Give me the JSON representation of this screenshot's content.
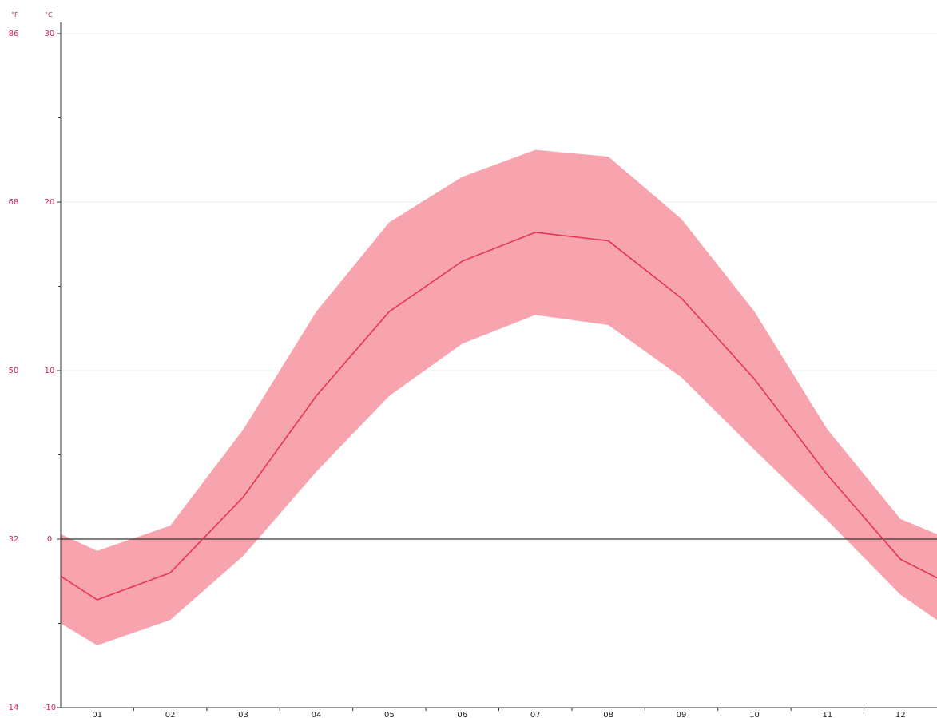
{
  "chart_data": {
    "type": "area",
    "unit_f_label": "°F",
    "unit_c_label": "°C",
    "x": [
      "01",
      "02",
      "03",
      "04",
      "05",
      "06",
      "07",
      "08",
      "09",
      "10",
      "11",
      "12"
    ],
    "x_edge_left": 0.5,
    "x_edge_right": 12.5,
    "series": [
      {
        "role": "mean",
        "color": "#e8344e",
        "values": [
          -2.2,
          -3.6,
          -2.0,
          2.5,
          8.5,
          13.5,
          16.5,
          18.2,
          17.7,
          14.3,
          9.5,
          3.8,
          -1.2,
          -2.3
        ]
      },
      {
        "role": "max",
        "color": "#f78a96",
        "values": [
          0.3,
          -0.7,
          0.8,
          6.5,
          13.5,
          18.8,
          21.5,
          23.1,
          22.7,
          19.0,
          13.5,
          6.5,
          1.2,
          0.3
        ]
      },
      {
        "role": "min",
        "color": "#f78a96",
        "values": [
          -5.0,
          -6.3,
          -4.8,
          -1.0,
          4.0,
          8.5,
          11.6,
          13.3,
          12.7,
          9.6,
          5.3,
          1.1,
          -3.3,
          -4.8
        ]
      }
    ],
    "x_values": [
      0.5,
      1,
      2,
      3,
      4,
      5,
      6,
      7,
      8,
      9,
      10,
      11,
      12,
      12.5
    ],
    "ylim_c": [
      -10,
      30
    ],
    "y_ticks_c": [
      "-10",
      "0",
      "10",
      "20",
      "30"
    ],
    "y_ticks_f": [
      "14",
      "32",
      "50",
      "68",
      "86"
    ],
    "grid": true,
    "zero_line_color": "#333333",
    "band_color": "#f7909c",
    "line_color": "#e8344e"
  }
}
